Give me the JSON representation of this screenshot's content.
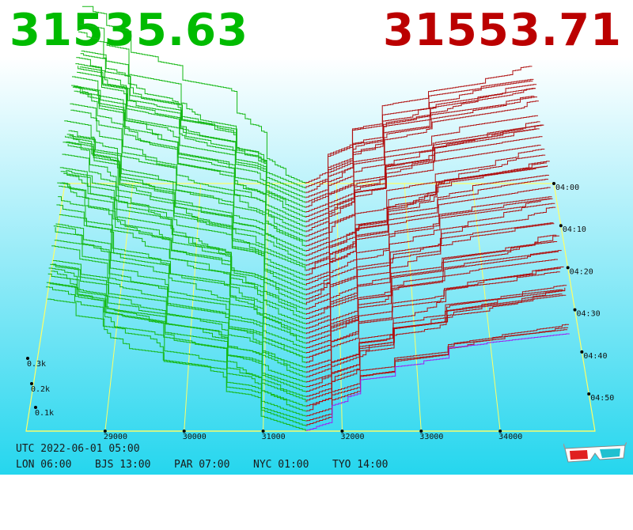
{
  "bid_price": "31535.63",
  "ask_price": "31553.71",
  "utc_time": "UTC 2022-06-01 05:00",
  "timezones": [
    "LON 06:00",
    "BJS 13:00",
    "PAR 07:00",
    "NYC 01:00",
    "TYO 14:00"
  ],
  "colors": {
    "bid": "#00bb00",
    "ask": "#bb0000",
    "bid_line": "#14b814",
    "ask_line": "#b01010",
    "grid": "#ffff66",
    "background_top": "#ffffff",
    "background_bottom": "#27d8ef"
  },
  "glasses_icon": "3d-glasses-icon",
  "chart_data": {
    "type": "3d-depth-surface",
    "title": "",
    "price_axis": {
      "ticks": [
        "29000",
        "30000",
        "31000",
        "32000",
        "33000",
        "34000"
      ]
    },
    "time_axis": {
      "ticks": [
        "04:00",
        "04:10",
        "04:20",
        "04:30",
        "04:40",
        "04:50"
      ]
    },
    "volume_axis": {
      "ticks": [
        "0.1k",
        "0.2k",
        "0.3k"
      ]
    },
    "spread": {
      "bid": 31535.63,
      "ask": 31553.71
    },
    "slice_count": 52,
    "grid": true
  }
}
